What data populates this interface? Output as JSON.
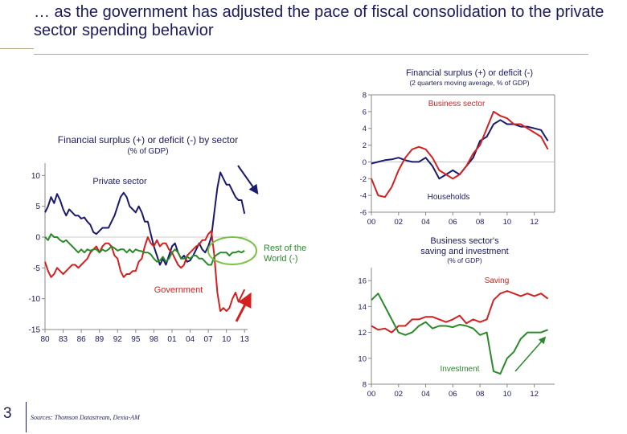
{
  "slide": {
    "title": "… as the government has adjusted the pace of fiscal consolidation to the private sector spending behavior",
    "page_number": "3",
    "source": "Sources: Thomson Datastream, Dexia-AM"
  },
  "colors": {
    "navy": "#1a1a6e",
    "red": "#d42020",
    "green": "#2a8a2a",
    "highlight": "#7ac142",
    "axis": "#888888"
  },
  "chart_data": [
    {
      "type": "line",
      "title": "Financial surplus (+) or deficit (-) by sector",
      "subtitle": "(% of GDP)",
      "ylim": [
        -15,
        12
      ],
      "y_ticks": [
        "10",
        "5",
        "0",
        "-5",
        "-10",
        "-15"
      ],
      "x_range": [
        1980,
        2013.5
      ],
      "x_ticks": [
        "80",
        "83",
        "86",
        "89",
        "92",
        "95",
        "98",
        "01",
        "04",
        "07",
        "10",
        "13"
      ],
      "series": [
        {
          "name": "Private sector",
          "color": "#1a1a6e",
          "x": [
            1980,
            1980.5,
            1981,
            1981.5,
            1982,
            1982.5,
            1983,
            1983.5,
            1984,
            1984.5,
            1985,
            1985.5,
            1986,
            1986.5,
            1987,
            1987.5,
            1988,
            1988.5,
            1989,
            1989.5,
            1990,
            1990.5,
            1991,
            1991.5,
            1992,
            1992.5,
            1993,
            1993.5,
            1994,
            1994.5,
            1995,
            1995.5,
            1996,
            1996.5,
            1997,
            1997.5,
            1998,
            1998.5,
            1999,
            1999.5,
            2000,
            2000.5,
            2001,
            2001.5,
            2002,
            2002.5,
            2003,
            2003.5,
            2004,
            2004.5,
            2005,
            2005.5,
            2006,
            2006.5,
            2007,
            2007.5,
            2008,
            2008.5,
            2009,
            2009.5,
            2010,
            2010.5,
            2011,
            2011.5,
            2012,
            2012.5,
            2013
          ],
          "y": [
            4,
            5,
            6.5,
            5.5,
            7,
            6,
            4.5,
            3.5,
            4.5,
            4,
            3.5,
            3.5,
            3,
            3.2,
            2.5,
            2,
            0.8,
            0.5,
            1,
            1.5,
            1.5,
            1.5,
            2.5,
            3.5,
            5,
            6.5,
            7.2,
            6.5,
            5,
            4.5,
            4,
            5,
            4,
            2.5,
            2.5,
            0.5,
            -1.5,
            -3,
            -4.5,
            -3.5,
            -4.5,
            -3,
            -1.5,
            -1,
            -2.5,
            -3.5,
            -3,
            -4,
            -3.8,
            -3,
            -2,
            -1,
            -2,
            -2.5,
            -1.5,
            0,
            4,
            8,
            10.5,
            9.5,
            8.5,
            8.5,
            7.5,
            6.5,
            6,
            6,
            3.8
          ]
        },
        {
          "name": "Government",
          "color": "#d42020",
          "x": [
            1980,
            1980.5,
            1981,
            1981.5,
            1982,
            1982.5,
            1983,
            1983.5,
            1984,
            1984.5,
            1985,
            1985.5,
            1986,
            1986.5,
            1987,
            1987.5,
            1988,
            1988.5,
            1989,
            1989.5,
            1990,
            1990.5,
            1991,
            1991.5,
            1992,
            1992.5,
            1993,
            1993.5,
            1994,
            1994.5,
            1995,
            1995.5,
            1996,
            1996.5,
            1997,
            1997.5,
            1998,
            1998.5,
            1999,
            1999.5,
            2000,
            2000.5,
            2001,
            2001.5,
            2002,
            2002.5,
            2003,
            2003.5,
            2004,
            2004.5,
            2005,
            2005.5,
            2006,
            2006.5,
            2007,
            2007.5,
            2008,
            2008.5,
            2009,
            2009.5,
            2010,
            2010.5,
            2011,
            2011.5,
            2012,
            2012.5,
            2013
          ],
          "y": [
            -4,
            -5.5,
            -6.5,
            -6,
            -5,
            -5.5,
            -6,
            -5.5,
            -5,
            -4.5,
            -4.5,
            -5,
            -4.5,
            -4,
            -3.5,
            -2.5,
            -2,
            -1.5,
            -2.5,
            -1.5,
            -1,
            -1,
            -1.5,
            -3,
            -3.5,
            -5.5,
            -6.5,
            -6,
            -6,
            -5.5,
            -5.5,
            -4,
            -3.5,
            -1.5,
            0,
            -1,
            -1.5,
            -0.5,
            -1.5,
            -1,
            -1,
            -2,
            -2.5,
            -3.5,
            -4.5,
            -5,
            -4.5,
            -3,
            -2.5,
            -2,
            -1.5,
            -1.2,
            -0.5,
            -0.5,
            0.5,
            1,
            -3,
            -9,
            -12,
            -11.5,
            -12,
            -11.5,
            -10,
            -9,
            -10.5,
            -9.5,
            -8.5
          ]
        },
        {
          "name": "Rest of the World (-)",
          "color": "#2a8a2a",
          "x": [
            1980,
            1980.5,
            1981,
            1981.5,
            1982,
            1982.5,
            1983,
            1983.5,
            1984,
            1984.5,
            1985,
            1985.5,
            1986,
            1986.5,
            1987,
            1987.5,
            1988,
            1988.5,
            1989,
            1989.5,
            1990,
            1990.5,
            1991,
            1991.5,
            1992,
            1992.5,
            1993,
            1993.5,
            1994,
            1994.5,
            1995,
            1995.5,
            1996,
            1996.5,
            1997,
            1997.5,
            1998,
            1998.5,
            1999,
            1999.5,
            2000,
            2000.5,
            2001,
            2001.5,
            2002,
            2002.5,
            2003,
            2003.5,
            2004,
            2004.5,
            2005,
            2005.5,
            2006,
            2006.5,
            2007,
            2007.5,
            2008,
            2008.5,
            2009,
            2009.5,
            2010,
            2010.5,
            2011,
            2011.5,
            2012,
            2012.5,
            2013
          ],
          "y": [
            0,
            -0.5,
            0.5,
            0,
            0,
            -0.5,
            -0.8,
            -0.5,
            -1,
            -1.5,
            -2,
            -2.5,
            -2,
            -2.5,
            -2,
            -2.2,
            -2,
            -2,
            -2.5,
            -2,
            -2.3,
            -2,
            -1.5,
            -1.8,
            -2.2,
            -2,
            -2,
            -2.5,
            -2,
            -2.5,
            -2,
            -2.2,
            -2.3,
            -2.5,
            -2.5,
            -2.8,
            -3.5,
            -4,
            -3.8,
            -3.2,
            -4,
            -3.5,
            -2.5,
            -2,
            -2.5,
            -3.5,
            -3.5,
            -3.2,
            -3.5,
            -3,
            -3,
            -3.5,
            -3.5,
            -4,
            -4.5,
            -4.5,
            -3.2,
            -2.8,
            -2.5,
            -2.5,
            -2.5,
            -3,
            -2.5,
            -2.5,
            -2.3,
            -2.5,
            -2.2
          ]
        }
      ],
      "annotations": [
        "Private sector",
        "Government",
        "Rest of the World (-)"
      ]
    },
    {
      "type": "line",
      "title": "Financial surplus (+) or deficit (-)",
      "subtitle": "(2 quarters moving average, % of GDP)",
      "ylim": [
        -6,
        8
      ],
      "y_ticks": [
        "8",
        "6",
        "4",
        "2",
        "0",
        "-2",
        "-4",
        "-6"
      ],
      "x_range": [
        2000,
        2013.5
      ],
      "x_ticks": [
        "00",
        "02",
        "04",
        "06",
        "08",
        "10",
        "12"
      ],
      "series": [
        {
          "name": "Business sector",
          "color": "#1a1a6e",
          "x": [
            2000,
            2000.5,
            2001,
            2001.5,
            2002,
            2002.5,
            2003,
            2003.5,
            2004,
            2004.5,
            2005,
            2005.5,
            2006,
            2006.5,
            2007,
            2007.5,
            2008,
            2008.5,
            2009,
            2009.5,
            2010,
            2010.5,
            2011,
            2011.5,
            2012,
            2012.5,
            2013
          ],
          "y": [
            -0.2,
            0,
            0.2,
            0.3,
            0.5,
            0.2,
            0,
            0,
            0.5,
            -0.5,
            -2,
            -1.5,
            -1,
            -1.5,
            -0.5,
            0.5,
            2.5,
            3,
            4.5,
            5,
            4.5,
            4.5,
            4.2,
            4.2,
            4,
            3.8,
            2.5
          ]
        },
        {
          "name": "Households",
          "color": "#d42020",
          "x": [
            2000,
            2000.5,
            2001,
            2001.5,
            2002,
            2002.5,
            2003,
            2003.5,
            2004,
            2004.5,
            2005,
            2005.5,
            2006,
            2006.5,
            2007,
            2007.5,
            2008,
            2008.5,
            2009,
            2009.5,
            2010,
            2010.5,
            2011,
            2011.5,
            2012,
            2012.5,
            2013
          ],
          "y": [
            -2,
            -4,
            -4.2,
            -3,
            -1,
            0.5,
            1.5,
            1.8,
            1.5,
            0.5,
            -1,
            -1.5,
            -2,
            -1.5,
            -0.5,
            1,
            2,
            4,
            6,
            5.5,
            5.2,
            4.5,
            4.5,
            4,
            3.5,
            3,
            1.5
          ]
        }
      ],
      "annotations": [
        "Business sector",
        "Households"
      ]
    },
    {
      "type": "line",
      "title": "Business sector's saving and investment",
      "subtitle": "(% of GDP)",
      "ylim": [
        8,
        17
      ],
      "y_ticks": [
        "16",
        "14",
        "12",
        "10",
        "8"
      ],
      "x_range": [
        2000,
        2013.5
      ],
      "x_ticks": [
        "00",
        "02",
        "04",
        "06",
        "08",
        "10",
        "12"
      ],
      "series": [
        {
          "name": "Saving",
          "color": "#d42020",
          "x": [
            2000,
            2000.5,
            2001,
            2001.5,
            2002,
            2002.5,
            2003,
            2003.5,
            2004,
            2004.5,
            2005,
            2005.5,
            2006,
            2006.5,
            2007,
            2007.5,
            2008,
            2008.5,
            2009,
            2009.5,
            2010,
            2010.5,
            2011,
            2011.5,
            2012,
            2012.5,
            2013
          ],
          "y": [
            12.5,
            12.2,
            12.3,
            12,
            12.5,
            12.5,
            13,
            13,
            13.2,
            13.2,
            13,
            12.8,
            13,
            13.3,
            12.7,
            13,
            12.8,
            13,
            14.5,
            15,
            15.2,
            15,
            14.8,
            15,
            14.8,
            15,
            14.6
          ]
        },
        {
          "name": "Investment",
          "color": "#2a8a2a",
          "x": [
            2000,
            2000.5,
            2001,
            2001.5,
            2002,
            2002.5,
            2003,
            2003.5,
            2004,
            2004.5,
            2005,
            2005.5,
            2006,
            2006.5,
            2007,
            2007.5,
            2008,
            2008.5,
            2009,
            2009.5,
            2010,
            2010.5,
            2011,
            2011.5,
            2012,
            2012.5,
            2013
          ],
          "y": [
            14.5,
            15,
            14,
            13,
            12,
            11.8,
            12,
            12.5,
            12.8,
            12.3,
            12.5,
            12.5,
            12.4,
            12.6,
            12.5,
            12.3,
            11.8,
            12,
            9,
            8.8,
            10,
            10.5,
            11.5,
            12,
            12,
            12,
            12.2
          ]
        }
      ],
      "annotations": [
        "Saving",
        "Investment"
      ]
    }
  ]
}
